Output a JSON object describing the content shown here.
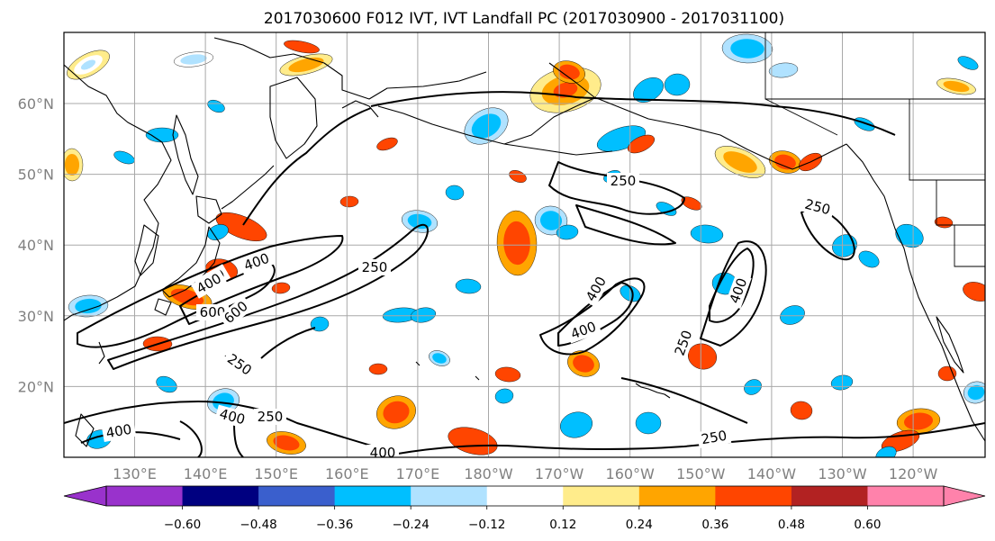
{
  "title": "2017030600 F012 IVT, IVT Landfall PC (2017030900 - 2017031100)",
  "lat_labels": [
    {
      "lat": 60,
      "text": "60°N"
    },
    {
      "lat": 50,
      "text": "50°N"
    },
    {
      "lat": 40,
      "text": "40°N"
    },
    {
      "lat": 30,
      "text": "30°N"
    },
    {
      "lat": 20,
      "text": "20°N"
    }
  ],
  "lon_labels": [
    {
      "lon": 130,
      "text": "130°E"
    },
    {
      "lon": 140,
      "text": "140°E"
    },
    {
      "lon": 150,
      "text": "150°E"
    },
    {
      "lon": 160,
      "text": "160°E"
    },
    {
      "lon": 170,
      "text": "170°E"
    },
    {
      "lon": 180,
      "text": "180°W"
    },
    {
      "lon": 190,
      "text": "170°W"
    },
    {
      "lon": 200,
      "text": "160°W"
    },
    {
      "lon": 210,
      "text": "150°W"
    },
    {
      "lon": 220,
      "text": "140°W"
    },
    {
      "lon": 230,
      "text": "130°W"
    },
    {
      "lon": 240,
      "text": "120°W"
    }
  ],
  "colorbar": {
    "colors": [
      "#9932CC",
      "#000080",
      "#3A5FCD",
      "#00BFFF",
      "#B0E2FF",
      "#FFFFFF",
      "#FFEC8B",
      "#FFA500",
      "#FF4500",
      "#B22222",
      "#FF82AB"
    ],
    "tick_labels": [
      "−0.60",
      "−0.48",
      "−0.36",
      "−0.24",
      "−0.12",
      "0.12",
      "0.24",
      "0.36",
      "0.48",
      "0.60"
    ]
  },
  "contour_labels": [
    "250",
    "250",
    "250",
    "250",
    "250",
    "250",
    "250",
    "250",
    "400",
    "400",
    "400",
    "400",
    "400",
    "400",
    "400",
    "400",
    "600",
    "600"
  ]
}
